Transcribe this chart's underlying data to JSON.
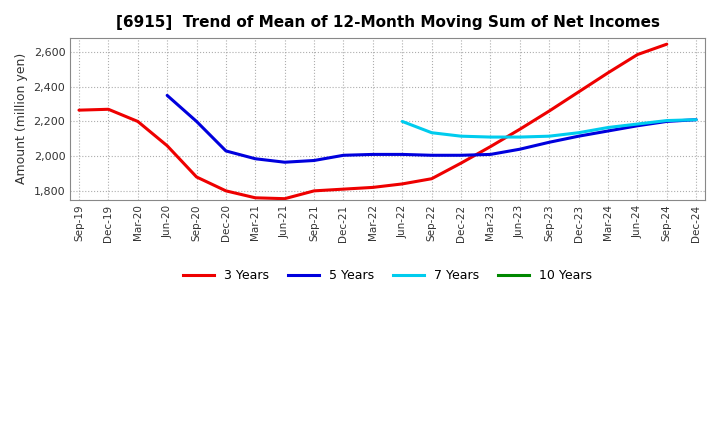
{
  "title": "[6915]  Trend of Mean of 12-Month Moving Sum of Net Incomes",
  "ylabel": "Amount (million yen)",
  "background_color": "#FFFFFF",
  "plot_bg_color": "#FFFFFF",
  "grid_color": "#999999",
  "ylim": [
    1750,
    2680
  ],
  "yticks": [
    1800,
    2000,
    2200,
    2400,
    2600
  ],
  "x_labels": [
    "Sep-19",
    "Dec-19",
    "Mar-20",
    "Jun-20",
    "Sep-20",
    "Dec-20",
    "Mar-21",
    "Jun-21",
    "Sep-21",
    "Dec-21",
    "Mar-22",
    "Jun-22",
    "Sep-22",
    "Dec-22",
    "Mar-23",
    "Jun-23",
    "Sep-23",
    "Dec-23",
    "Mar-24",
    "Jun-24",
    "Sep-24",
    "Dec-24"
  ],
  "series_order": [
    "3 Years",
    "5 Years",
    "7 Years",
    "10 Years"
  ],
  "series": {
    "3 Years": {
      "color": "#EE0000",
      "data_x": [
        0,
        1,
        2,
        3,
        4,
        5,
        6,
        7,
        8,
        9,
        10,
        11,
        12,
        13,
        14,
        15,
        16,
        17,
        18,
        19,
        20
      ],
      "data_y": [
        2265,
        2270,
        2200,
        2060,
        1880,
        1800,
        1760,
        1755,
        1800,
        1810,
        1820,
        1840,
        1870,
        1960,
        2055,
        2155,
        2260,
        2370,
        2480,
        2585,
        2645
      ]
    },
    "5 Years": {
      "color": "#0000DD",
      "data_x": [
        3,
        4,
        5,
        6,
        7,
        8,
        9,
        10,
        11,
        12,
        13,
        14,
        15,
        16,
        17,
        18,
        19,
        20,
        21
      ],
      "data_y": [
        2350,
        2200,
        2030,
        1985,
        1965,
        1975,
        2005,
        2010,
        2010,
        2005,
        2005,
        2010,
        2040,
        2080,
        2115,
        2145,
        2175,
        2200,
        2210
      ]
    },
    "7 Years": {
      "color": "#00CCEE",
      "data_x": [
        11,
        12,
        13,
        14,
        15,
        16,
        17,
        18,
        19,
        20,
        21
      ],
      "data_y": [
        2200,
        2135,
        2115,
        2110,
        2110,
        2115,
        2135,
        2165,
        2185,
        2205,
        2210
      ]
    },
    "10 Years": {
      "color": "#008800",
      "data_x": [],
      "data_y": []
    }
  },
  "legend_entries": [
    {
      "label": "3 Years",
      "color": "#EE0000"
    },
    {
      "label": "5 Years",
      "color": "#0000DD"
    },
    {
      "label": "7 Years",
      "color": "#00CCEE"
    },
    {
      "label": "10 Years",
      "color": "#008800"
    }
  ]
}
